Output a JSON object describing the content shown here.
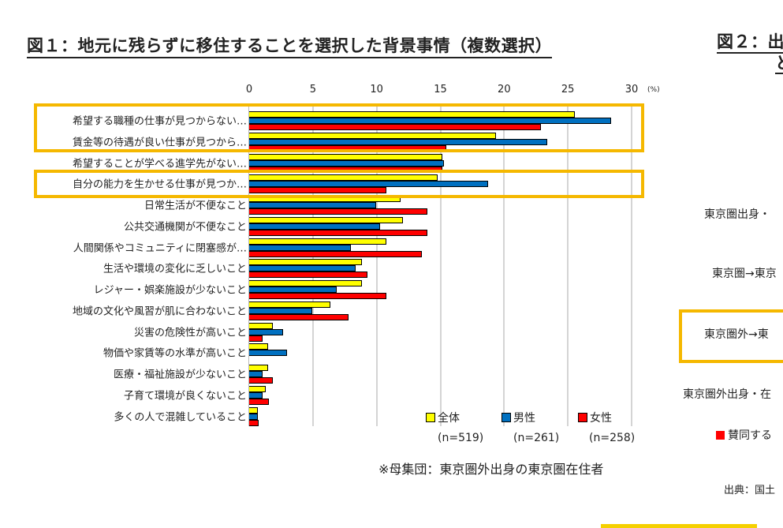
{
  "chart_data": {
    "type": "bar",
    "orientation": "horizontal",
    "title": "図１：地元に残らずに移住することを選択した背景事情（複数選択）",
    "unit_label": "(%)",
    "xlim": [
      0,
      30
    ],
    "x_ticks": [
      "0",
      "5",
      "10",
      "15",
      "20",
      "25",
      "30"
    ],
    "grid": true,
    "legend_position": "bottom-right",
    "categories": [
      "希望する職種の仕事が見つからない…",
      "賃金等の待遇が良い仕事が見つから…",
      "希望することが学べる進学先がない…",
      "自分の能力を生かせる仕事が見つか…",
      "日常生活が不便なこと",
      "公共交通機関が不便なこと",
      "人間関係やコミュニティに閉塞感が…",
      "生活や環境の変化に乏しいこと",
      "レジャー・娯楽施設が少ないこと",
      "地域の文化や風習が肌に合わないこと",
      "災害の危険性が高いこと",
      "物価や家賃等の水準が高いこと",
      "医療・福祉施設が少ないこと",
      "子育て環境が良くないこと",
      "多くの人で混雑していること"
    ],
    "series": [
      {
        "name": "全体",
        "n": "(n=519)",
        "color": "#ffff00",
        "values": [
          25.6,
          19.4,
          15.2,
          14.8,
          11.9,
          12.1,
          10.8,
          8.9,
          8.9,
          6.4,
          1.9,
          1.5,
          1.5,
          1.3,
          0.7
        ]
      },
      {
        "name": "男性",
        "n": "(n=261)",
        "color": "#0070c0",
        "values": [
          28.4,
          23.4,
          15.3,
          18.8,
          10.0,
          10.3,
          8.0,
          8.4,
          6.9,
          5.0,
          2.7,
          3.0,
          1.1,
          1.1,
          0.7
        ]
      },
      {
        "name": "女性",
        "n": "(n=258)",
        "color": "#ff0000",
        "values": [
          22.9,
          15.5,
          15.2,
          10.8,
          14.0,
          14.0,
          13.6,
          9.3,
          10.8,
          7.8,
          1.1,
          0.0,
          1.9,
          1.6,
          0.8
        ]
      }
    ],
    "highlight_color": "#f5b800",
    "footnote": "※母集団：東京圏外出身の東京圏在住者"
  },
  "right_panel": {
    "title_line1": "図２：出",
    "title_line2": "と",
    "labels": [
      "東京圏出身・",
      "東京圏→東京",
      "東京圏外→東",
      "東京圏外出身・在"
    ],
    "legend_label": "賛同する",
    "source": "出典：国土"
  }
}
